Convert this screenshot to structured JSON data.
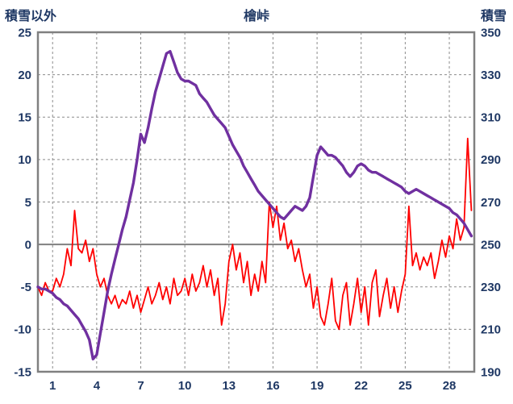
{
  "chart_data": {
    "type": "line",
    "title": "檜峠",
    "left_axis": {
      "label": "積雪以外",
      "min": -15,
      "max": 25,
      "tick_step": 5,
      "tick_values": [
        -15,
        -10,
        -5,
        0,
        5,
        10,
        15,
        20,
        25
      ]
    },
    "right_axis": {
      "label": "積雪",
      "min": 190,
      "max": 350,
      "tick_step": 20,
      "tick_values": [
        190,
        210,
        230,
        250,
        270,
        290,
        310,
        330,
        350
      ]
    },
    "x_axis": {
      "min": 0,
      "max": 29.7,
      "tick_values": [
        1,
        4,
        7,
        10,
        13,
        16,
        19,
        22,
        25,
        28
      ]
    },
    "x_start": 0,
    "x_step": 0.25,
    "grid": {
      "color": "#8c8c8c",
      "dash": "3 3"
    },
    "zero_line": {
      "value": 0,
      "color": "#808080"
    },
    "styles": {
      "border_color": "#808080",
      "tick_color": "#1F3864",
      "background": "#ffffff"
    },
    "series": [
      {
        "name": "積雪以外",
        "axis": "left",
        "color": "#FF0000",
        "width": 1.8,
        "values": [
          -5.0,
          -6.0,
          -4.5,
          -5.5,
          -5.5,
          -4.0,
          -5.0,
          -3.5,
          -0.5,
          -2.5,
          4.0,
          -0.5,
          -1.0,
          0.5,
          -2.0,
          -0.5,
          -3.5,
          -5.0,
          -4.0,
          -6.0,
          -7.0,
          -6.0,
          -7.5,
          -6.5,
          -7.0,
          -5.5,
          -7.5,
          -6.0,
          -8.0,
          -6.5,
          -5.0,
          -7.0,
          -6.0,
          -4.5,
          -6.5,
          -5.0,
          -7.0,
          -4.0,
          -6.0,
          -5.5,
          -4.0,
          -6.0,
          -3.5,
          -5.5,
          -4.5,
          -2.5,
          -5.0,
          -3.0,
          -6.0,
          -4.0,
          -9.5,
          -7.0,
          -2.0,
          0.0,
          -3.0,
          -1.0,
          -4.5,
          -2.0,
          -6.0,
          -3.5,
          -5.5,
          -2.0,
          -4.5,
          5.0,
          2.0,
          4.5,
          0.5,
          2.5,
          -0.5,
          0.5,
          -2.0,
          -0.5,
          -3.0,
          -5.0,
          -3.5,
          -7.5,
          -5.0,
          -8.5,
          -9.5,
          -7.0,
          -4.0,
          -9.0,
          -10.0,
          -6.0,
          -4.5,
          -9.5,
          -7.0,
          -4.0,
          -8.0,
          -5.0,
          -9.5,
          -4.5,
          -3.0,
          -8.5,
          -6.0,
          -4.0,
          -7.5,
          -5.0,
          -8.0,
          -5.5,
          -3.5,
          4.5,
          -2.5,
          -1.0,
          -3.0,
          -1.5,
          -2.5,
          -1.0,
          -4.0,
          -2.0,
          0.5,
          -1.5,
          1.0,
          -0.5,
          3.0,
          0.5,
          2.0,
          12.5,
          4.0
        ]
      },
      {
        "name": "積雪",
        "axis": "right",
        "color": "#7030A0",
        "width": 3.4,
        "values": [
          230,
          229,
          229,
          228,
          227,
          225,
          224,
          222,
          221,
          219,
          217,
          215,
          212,
          209,
          205,
          196,
          198,
          208,
          218,
          228,
          236,
          243,
          250,
          257,
          263,
          271,
          279,
          290,
          302,
          298,
          305,
          314,
          322,
          328,
          334,
          340,
          341,
          336,
          331,
          328,
          327,
          327,
          326,
          325,
          321,
          319,
          317,
          314,
          311,
          309,
          307,
          305,
          301,
          297,
          294,
          291,
          287,
          284,
          281,
          278,
          275,
          273,
          271,
          269,
          267,
          265,
          263,
          262,
          264,
          266,
          268,
          267,
          266,
          268,
          272,
          282,
          292,
          296,
          294,
          292,
          292,
          291,
          289,
          287,
          284,
          282,
          284,
          287,
          288,
          287,
          285,
          284,
          284,
          283,
          282,
          281,
          280,
          279,
          278,
          277,
          275,
          274,
          275,
          276,
          275,
          274,
          273,
          272,
          271,
          270,
          269,
          268,
          267,
          265,
          264,
          262,
          260,
          257,
          254
        ]
      }
    ]
  }
}
